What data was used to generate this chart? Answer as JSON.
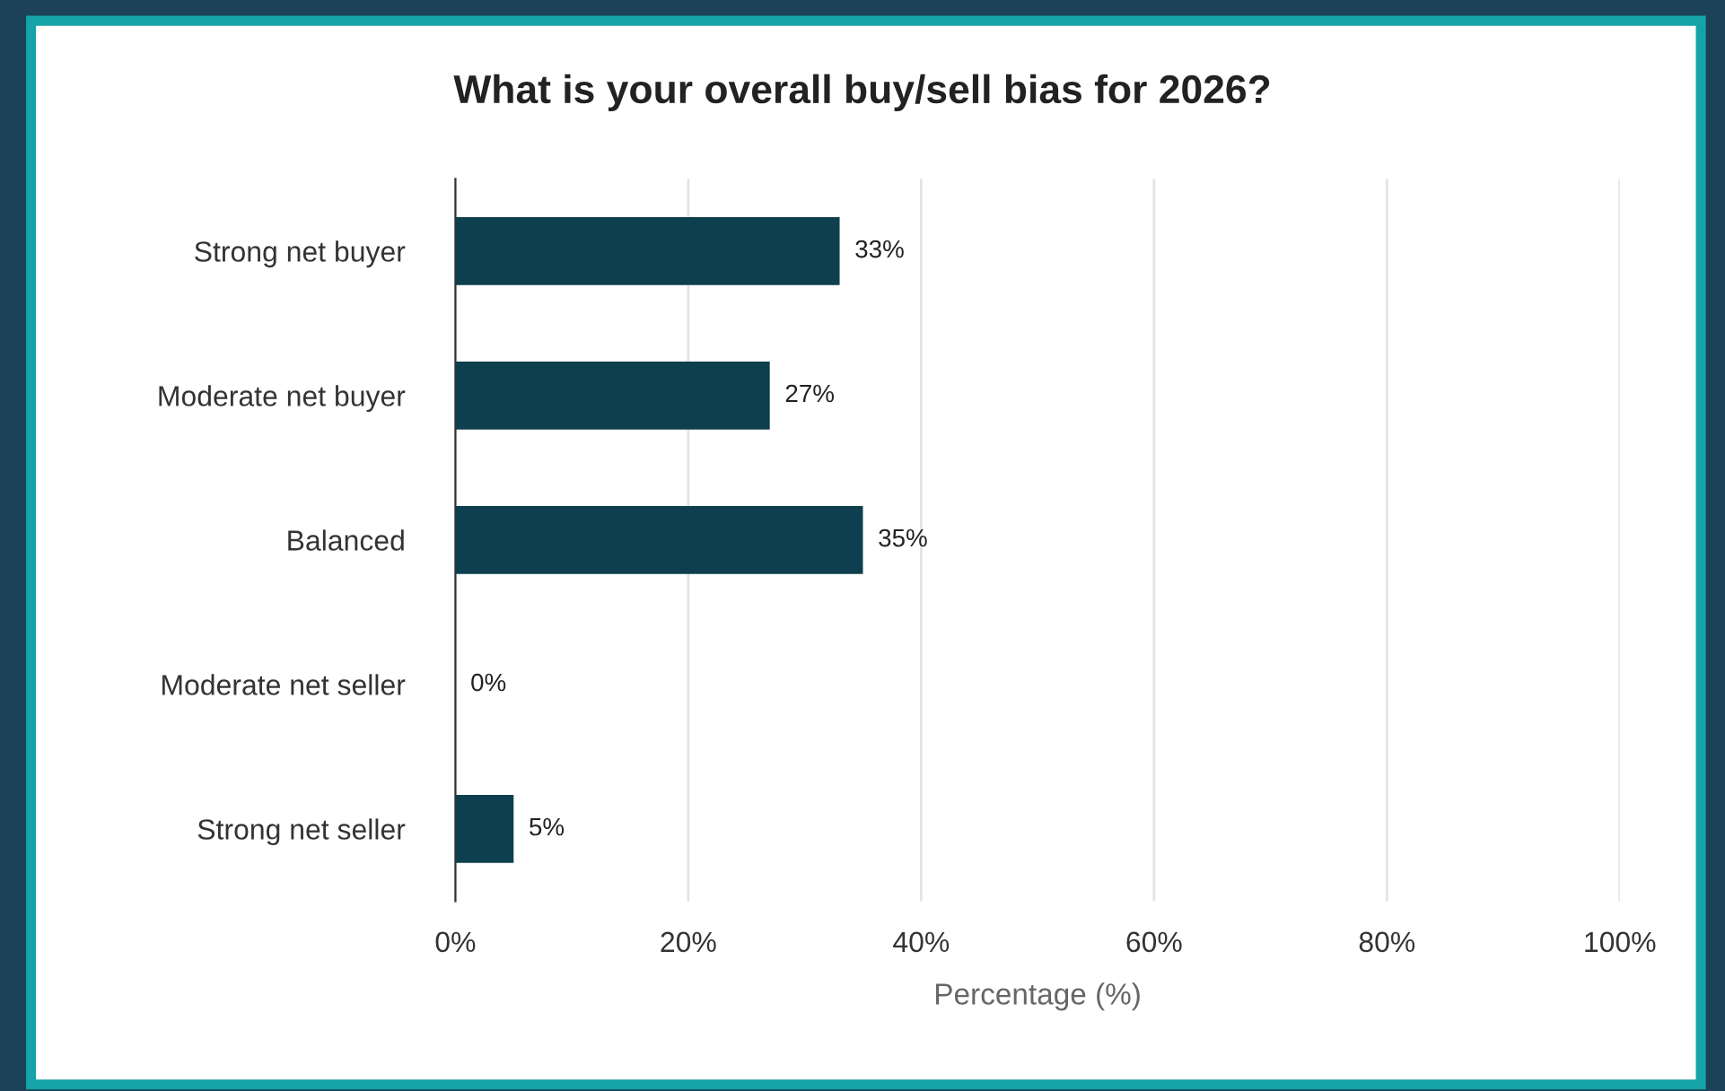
{
  "chart_data": {
    "type": "bar",
    "orientation": "horizontal",
    "title": "What is your overall buy/sell bias for 2026?",
    "xlabel": "Percentage (%)",
    "categories": [
      "Strong net buyer",
      "Moderate net buyer",
      "Balanced",
      "Moderate net seller",
      "Strong net seller"
    ],
    "values": [
      33,
      27,
      35,
      0,
      5
    ],
    "value_labels": [
      "33%",
      "27%",
      "35%",
      "0%",
      "5%"
    ],
    "color": "#0e3f4f",
    "xlim": [
      0,
      100
    ],
    "xticks": [
      {
        "value": 0,
        "label": "0%"
      },
      {
        "value": 20,
        "label": "20%"
      },
      {
        "value": 40,
        "label": "40%"
      },
      {
        "value": 60,
        "label": "60%"
      },
      {
        "value": 80,
        "label": "80%"
      },
      {
        "value": 100,
        "label": "100%"
      }
    ],
    "grid": "x",
    "legend": false
  }
}
